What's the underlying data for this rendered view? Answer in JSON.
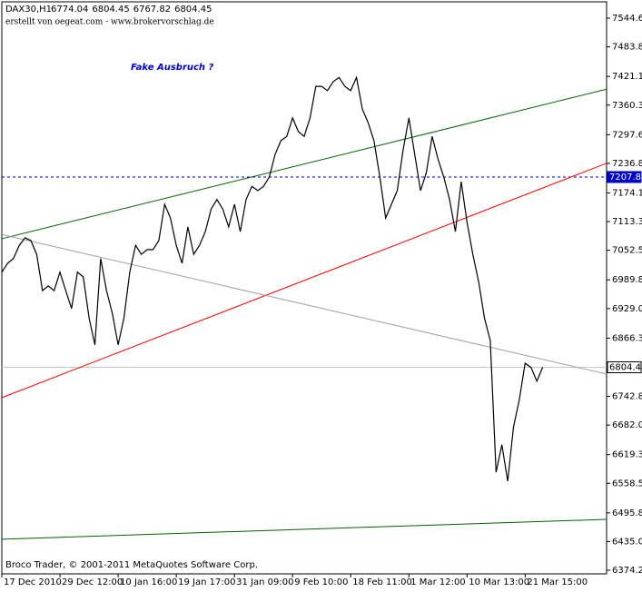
{
  "chart_data": {
    "type": "line",
    "symbol": "DAX30,H1",
    "ohlc": [
      6774.04,
      6804.45,
      6767.82,
      6804.45
    ],
    "subtitle": "erstellt von oegeat.com - www.brokervorschlag.de",
    "annotation": "Fake Ausbruch ?",
    "footer": "Broco Trader, © 2001-2011 MetaQuotes Software Corp.",
    "xlim": [
      0,
      104
    ],
    "ylim": [
      6366.5,
      7579.3
    ],
    "xticks": [
      {
        "value": 0,
        "label": "17 Dec 2010"
      },
      {
        "value": 10,
        "label": "29 Dec 12:00"
      },
      {
        "value": 20,
        "label": "10 Jan 16:00"
      },
      {
        "value": 30,
        "label": "19 Jan 17:00"
      },
      {
        "value": 40,
        "label": "31 Jan 09:00"
      },
      {
        "value": 50,
        "label": "9 Feb 10:00"
      },
      {
        "value": 60,
        "label": "18 Feb 11:00"
      },
      {
        "value": 70,
        "label": "1 Mar 12:00"
      },
      {
        "value": 80,
        "label": "10 Mar 13:00"
      },
      {
        "value": 90,
        "label": "21 Mar 15:00"
      }
    ],
    "yticks": [
      {
        "value": 7544.6,
        "label": "7544.60"
      },
      {
        "value": 7483.8,
        "label": "7483.80"
      },
      {
        "value": 7421.1,
        "label": "7421.10"
      },
      {
        "value": 7360.3,
        "label": "7360.30"
      },
      {
        "value": 7297.6,
        "label": "7297.60"
      },
      {
        "value": 7236.8,
        "label": "7236.80"
      },
      {
        "value": 7174.1,
        "label": "7174.10"
      },
      {
        "value": 7113.3,
        "label": "7113.30"
      },
      {
        "value": 7052.5,
        "label": "7052.50"
      },
      {
        "value": 6989.8,
        "label": "6989.80"
      },
      {
        "value": 6929,
        "label": "6929.00"
      },
      {
        "value": 6866.3,
        "label": "6866.30"
      },
      {
        "value": 6742.8,
        "label": "6742.80"
      },
      {
        "value": 6682,
        "label": "6682.00"
      },
      {
        "value": 6619.3,
        "label": "6619.30"
      },
      {
        "value": 6558.5,
        "label": "6558.50"
      },
      {
        "value": 6495.8,
        "label": "6495.80"
      },
      {
        "value": 6435,
        "label": "6435.00"
      },
      {
        "value": 6374.2,
        "label": "6374.20"
      }
    ],
    "series": [
      {
        "color": "#000000",
        "x": [
          0,
          1,
          2,
          3,
          4,
          5,
          6,
          7,
          8,
          9,
          10,
          11,
          12,
          13,
          14,
          15,
          16,
          17,
          18,
          19,
          20,
          21,
          22,
          23,
          24,
          25,
          26,
          27,
          28,
          29,
          30,
          31,
          32,
          33,
          34,
          35,
          36,
          37,
          38,
          39,
          40,
          41,
          42,
          43,
          44,
          45,
          46,
          47,
          48,
          49,
          50,
          51,
          52,
          53,
          54,
          55,
          56,
          57,
          58,
          59,
          60,
          61,
          62,
          63,
          64,
          65,
          66,
          67,
          68,
          69,
          70,
          71,
          72,
          73,
          74,
          75,
          76,
          77,
          78,
          79,
          80,
          81,
          82,
          83,
          84,
          85,
          86,
          87,
          88,
          89,
          90,
          91,
          92,
          93
        ],
        "values": [
          7006,
          7025,
          7035,
          7063,
          7079,
          7073,
          7044,
          6967,
          6977,
          6967,
          7006,
          6967,
          6929,
          7006,
          6996,
          6909,
          6852,
          7035,
          6967,
          6919,
          6852,
          6909,
          7006,
          7063,
          7044,
          7054,
          7054,
          7073,
          7150,
          7121,
          7063,
          7025,
          7102,
          7044,
          7063,
          7092,
          7140,
          7160,
          7140,
          7102,
          7150,
          7092,
          7160,
          7188,
          7179,
          7188,
          7208,
          7256,
          7285,
          7294,
          7333,
          7304,
          7294,
          7333,
          7400,
          7400,
          7391,
          7410,
          7419,
          7400,
          7391,
          7419,
          7352,
          7323,
          7285,
          7208,
          7121,
          7150,
          7179,
          7265,
          7333,
          7256,
          7179,
          7217,
          7294,
          7246,
          7208,
          7160,
          7092,
          7198,
          7112,
          7044,
          6986,
          6909,
          6861,
          6582,
          6640,
          6563,
          6678,
          6736,
          6813,
          6804,
          6775,
          6804.45
        ]
      }
    ],
    "trendlines": [
      {
        "color": "#006400",
        "x": [
          0,
          104
        ],
        "values": [
          7077,
          7394
        ]
      },
      {
        "color": "#ff0000",
        "x": [
          0,
          104
        ],
        "values": [
          6740,
          7237
        ]
      },
      {
        "color": "#a0a0a0",
        "x": [
          0,
          104
        ],
        "values": [
          7086,
          6790
        ]
      },
      {
        "color": "#006400",
        "x": [
          0,
          104
        ],
        "values": [
          6440,
          6482
        ]
      }
    ],
    "hlines": [
      {
        "value": 7207.81,
        "label": "7207.81",
        "color": "#0000c8",
        "dashed": true
      },
      {
        "value": 6804.45,
        "label": "6804.45",
        "color": "#c8c8c8",
        "dashed": false
      }
    ]
  }
}
